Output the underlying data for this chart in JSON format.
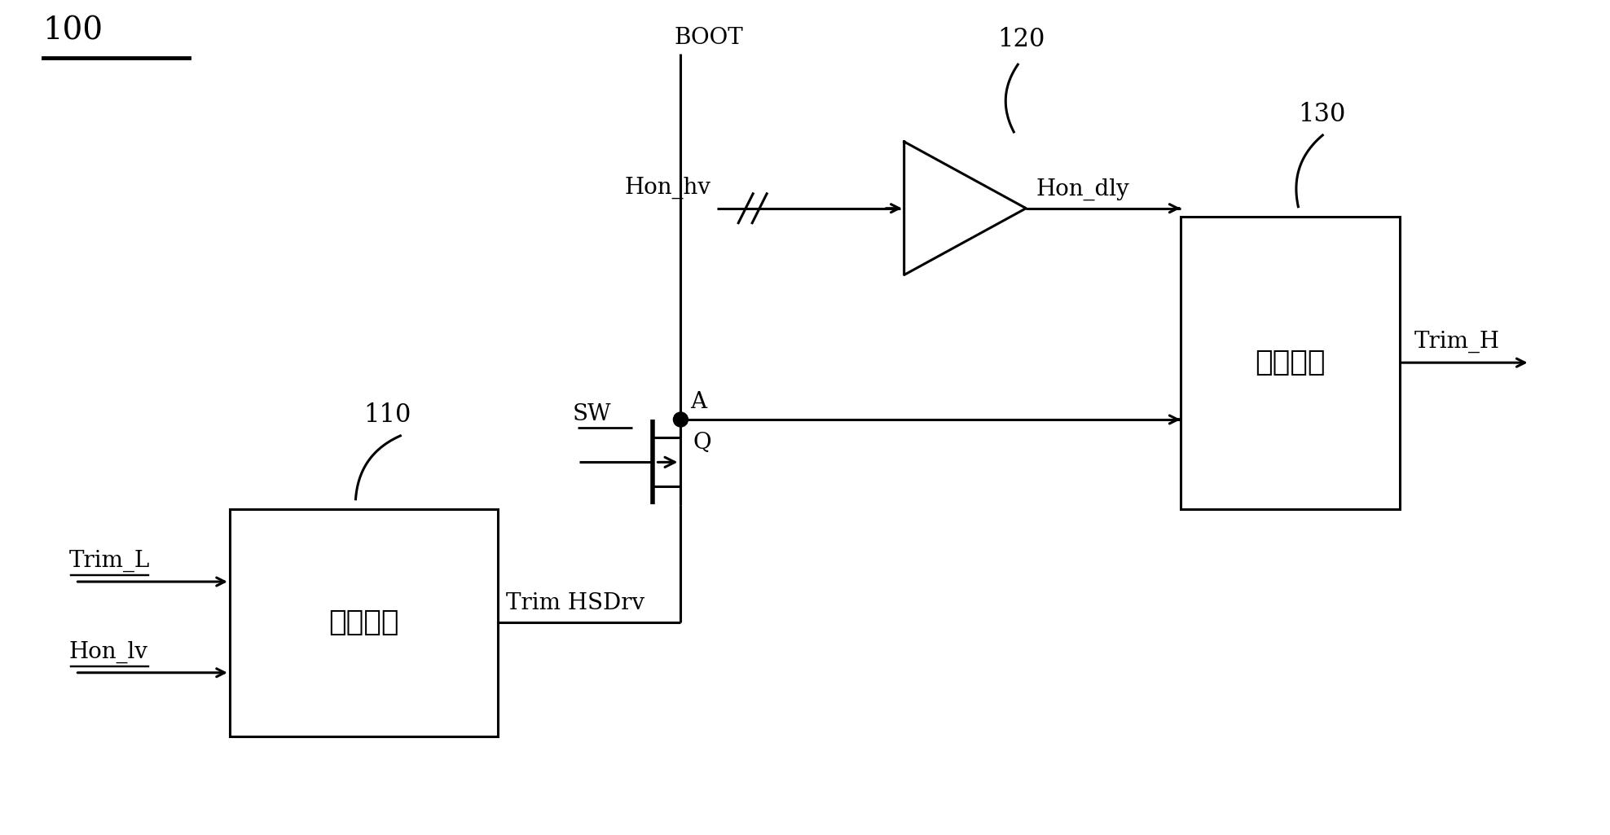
{
  "bg_color": "#ffffff",
  "line_color": "#000000",
  "text_color": "#000000",
  "label_100": "100",
  "label_110": "110",
  "label_120": "120",
  "label_130": "130",
  "label_BOOT": "BOOT",
  "label_A": "A",
  "label_SW": "SW",
  "label_Q": "Q",
  "label_Hon_hv": "Hon_hv",
  "label_Hon_dly": "Hon_dly",
  "label_Trim_H": "Trim_H",
  "label_Trim_L": "Trim_L",
  "label_Hon_lv": "Hon_lv",
  "label_Trim_HSDrv": "Trim HSDrv",
  "label_and_gate": "与门单元",
  "label_trigger": "触发单元",
  "font_size_label": 20,
  "font_size_num": 22,
  "font_size_box": 26
}
